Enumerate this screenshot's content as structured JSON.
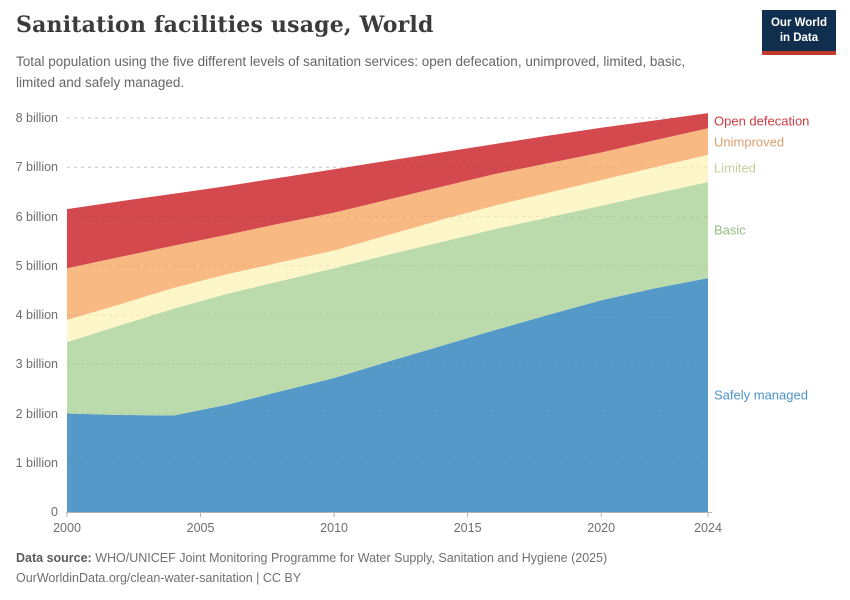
{
  "header": {
    "title": "Sanitation facilities usage, World",
    "subtitle": "Total population using the five different levels of sanitation services: open defecation, unimproved, limited, basic, limited and safely managed.",
    "logo": {
      "line1": "Our World",
      "line2": "in Data",
      "bg_color": "#102F4E",
      "accent_color": "#C0392B"
    }
  },
  "chart_data": {
    "type": "area",
    "stacked": true,
    "title": "Sanitation facilities usage, World",
    "xlabel": "",
    "ylabel": "",
    "unit": "billion people",
    "grid": "horizontal-dashed",
    "legend_position": "right-of-area",
    "xlim": [
      2000,
      2024
    ],
    "ylim": [
      0,
      8
    ],
    "x_ticks": [
      2000,
      2005,
      2010,
      2015,
      2020,
      2024
    ],
    "y_ticks": [
      0,
      1,
      2,
      3,
      4,
      5,
      6,
      7,
      8
    ],
    "y_tick_labels": [
      "0",
      "1 billion",
      "2 billion",
      "3 billion",
      "4 billion",
      "5 billion",
      "6 billion",
      "7 billion",
      "8 billion"
    ],
    "x": [
      2000,
      2002,
      2004,
      2006,
      2008,
      2010,
      2012,
      2014,
      2016,
      2018,
      2020,
      2022,
      2024
    ],
    "series": [
      {
        "name": "Safely managed",
        "color": "#5499C7",
        "label_color": "#4D93C7",
        "values": [
          2.0,
          1.97,
          1.96,
          2.18,
          2.45,
          2.72,
          3.05,
          3.37,
          3.69,
          4.0,
          4.3,
          4.54,
          4.75
        ]
      },
      {
        "name": "Basic",
        "color": "#BCDBAD",
        "label_color": "#93BE80",
        "values": [
          1.45,
          1.82,
          2.17,
          2.25,
          2.24,
          2.23,
          2.17,
          2.11,
          2.05,
          1.98,
          1.92,
          1.92,
          1.95
        ]
      },
      {
        "name": "Limited",
        "color": "#FCF6C8",
        "label_color": "#C9CC9C",
        "values": [
          0.45,
          0.43,
          0.42,
          0.4,
          0.38,
          0.36,
          0.4,
          0.45,
          0.48,
          0.5,
          0.52,
          0.54,
          0.55
        ]
      },
      {
        "name": "Unimproved",
        "color": "#F8B983",
        "label_color": "#DC9E6E",
        "values": [
          1.05,
          0.96,
          0.86,
          0.8,
          0.79,
          0.77,
          0.72,
          0.67,
          0.64,
          0.6,
          0.56,
          0.55,
          0.54
        ]
      },
      {
        "name": "Open defecation",
        "color": "#D4494D",
        "label_color": "#CE3B41",
        "values": [
          1.2,
          1.13,
          1.05,
          0.99,
          0.93,
          0.88,
          0.79,
          0.7,
          0.61,
          0.56,
          0.5,
          0.4,
          0.31
        ]
      }
    ]
  },
  "footer": {
    "datasource_label": "Data source:",
    "datasource_text": " WHO/UNICEF Joint Monitoring Programme for Water Supply, Sanitation and Hygiene (2025)",
    "note": "OurWorldinData.org/clean-water-sanitation | CC BY"
  }
}
